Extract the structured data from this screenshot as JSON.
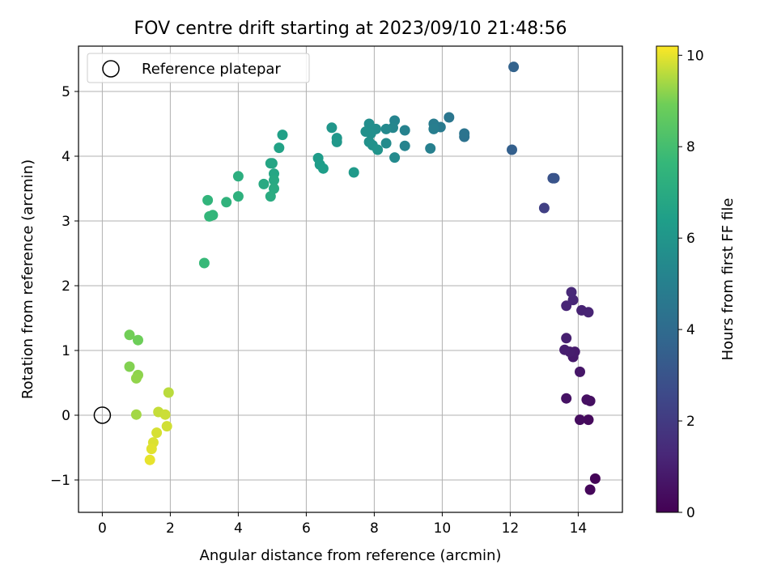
{
  "chart_data": {
    "type": "scatter",
    "title": "FOV centre drift starting at 2023/09/10 21:48:56",
    "xlabel": "Angular distance from reference (arcmin)",
    "ylabel": "Rotation from reference (arcmin)",
    "xlim": [
      -0.7,
      15.3
    ],
    "ylim": [
      -1.5,
      5.7
    ],
    "xticks": [
      0,
      2,
      4,
      6,
      8,
      10,
      12,
      14
    ],
    "yticks": [
      -1,
      0,
      1,
      2,
      3,
      4,
      5
    ],
    "grid": true,
    "legend": {
      "placement": "top-left",
      "entries": [
        "Reference platepar"
      ]
    },
    "reference_point": {
      "x": 0,
      "y": 0
    },
    "colorbar": {
      "label": "Hours from first FF file",
      "colormap": "viridis",
      "range": [
        0,
        10.2
      ],
      "ticks": [
        0,
        2,
        4,
        6,
        8,
        10
      ]
    },
    "points": [
      {
        "x": 14.5,
        "y": -0.98,
        "c": 0.1
      },
      {
        "x": 14.35,
        "y": -1.15,
        "c": 0.2
      },
      {
        "x": 14.3,
        "y": -0.07,
        "c": 0.3
      },
      {
        "x": 14.05,
        "y": -0.07,
        "c": 0.35
      },
      {
        "x": 14.35,
        "y": 0.22,
        "c": 0.45
      },
      {
        "x": 14.25,
        "y": 0.24,
        "c": 0.5
      },
      {
        "x": 13.65,
        "y": 0.26,
        "c": 0.55
      },
      {
        "x": 14.05,
        "y": 0.67,
        "c": 0.7
      },
      {
        "x": 13.85,
        "y": 0.9,
        "c": 0.8
      },
      {
        "x": 13.9,
        "y": 0.98,
        "c": 0.85
      },
      {
        "x": 13.75,
        "y": 0.98,
        "c": 0.9
      },
      {
        "x": 13.6,
        "y": 1.01,
        "c": 0.95
      },
      {
        "x": 13.65,
        "y": 1.19,
        "c": 1.0
      },
      {
        "x": 14.1,
        "y": 1.62,
        "c": 1.1
      },
      {
        "x": 14.3,
        "y": 1.59,
        "c": 1.15
      },
      {
        "x": 13.65,
        "y": 1.69,
        "c": 1.2
      },
      {
        "x": 13.85,
        "y": 1.78,
        "c": 1.25
      },
      {
        "x": 13.8,
        "y": 1.9,
        "c": 1.3
      },
      {
        "x": 13.0,
        "y": 3.2,
        "c": 2.2
      },
      {
        "x": 13.25,
        "y": 3.66,
        "c": 2.9
      },
      {
        "x": 13.3,
        "y": 3.66,
        "c": 3.0
      },
      {
        "x": 12.05,
        "y": 4.1,
        "c": 3.5
      },
      {
        "x": 12.1,
        "y": 5.38,
        "c": 3.6
      },
      {
        "x": 10.65,
        "y": 4.3,
        "c": 4.3
      },
      {
        "x": 10.65,
        "y": 4.35,
        "c": 4.4
      },
      {
        "x": 10.2,
        "y": 4.6,
        "c": 4.5
      },
      {
        "x": 9.95,
        "y": 4.45,
        "c": 4.7
      },
      {
        "x": 9.75,
        "y": 4.5,
        "c": 4.8
      },
      {
        "x": 9.75,
        "y": 4.42,
        "c": 4.9
      },
      {
        "x": 9.65,
        "y": 4.12,
        "c": 5.0
      },
      {
        "x": 8.9,
        "y": 4.4,
        "c": 5.1
      },
      {
        "x": 8.9,
        "y": 4.16,
        "c": 5.15
      },
      {
        "x": 8.6,
        "y": 4.55,
        "c": 5.2
      },
      {
        "x": 8.55,
        "y": 4.44,
        "c": 5.3
      },
      {
        "x": 8.35,
        "y": 4.42,
        "c": 5.4
      },
      {
        "x": 8.6,
        "y": 3.98,
        "c": 5.45
      },
      {
        "x": 8.35,
        "y": 4.2,
        "c": 5.5
      },
      {
        "x": 8.05,
        "y": 4.42,
        "c": 5.6
      },
      {
        "x": 7.85,
        "y": 4.5,
        "c": 5.65
      },
      {
        "x": 7.9,
        "y": 4.35,
        "c": 5.7
      },
      {
        "x": 7.75,
        "y": 4.38,
        "c": 5.75
      },
      {
        "x": 7.85,
        "y": 4.22,
        "c": 5.8
      },
      {
        "x": 7.95,
        "y": 4.17,
        "c": 5.85
      },
      {
        "x": 8.1,
        "y": 4.1,
        "c": 5.9
      },
      {
        "x": 6.75,
        "y": 4.44,
        "c": 6.0
      },
      {
        "x": 6.9,
        "y": 4.28,
        "c": 6.05
      },
      {
        "x": 6.9,
        "y": 4.22,
        "c": 6.1
      },
      {
        "x": 7.4,
        "y": 3.75,
        "c": 6.2
      },
      {
        "x": 6.35,
        "y": 3.97,
        "c": 6.3
      },
      {
        "x": 6.4,
        "y": 3.87,
        "c": 6.35
      },
      {
        "x": 6.5,
        "y": 3.81,
        "c": 6.4
      },
      {
        "x": 5.3,
        "y": 4.33,
        "c": 6.5
      },
      {
        "x": 5.2,
        "y": 4.13,
        "c": 6.6
      },
      {
        "x": 5.0,
        "y": 3.89,
        "c": 6.7
      },
      {
        "x": 4.95,
        "y": 3.89,
        "c": 6.75
      },
      {
        "x": 5.05,
        "y": 3.73,
        "c": 6.8
      },
      {
        "x": 5.05,
        "y": 3.63,
        "c": 6.9
      },
      {
        "x": 4.75,
        "y": 3.57,
        "c": 6.95
      },
      {
        "x": 5.05,
        "y": 3.5,
        "c": 7.0
      },
      {
        "x": 4.95,
        "y": 3.38,
        "c": 7.05
      },
      {
        "x": 4.0,
        "y": 3.69,
        "c": 7.2
      },
      {
        "x": 4.0,
        "y": 3.38,
        "c": 7.3
      },
      {
        "x": 3.65,
        "y": 3.29,
        "c": 7.4
      },
      {
        "x": 3.1,
        "y": 3.32,
        "c": 7.5
      },
      {
        "x": 3.25,
        "y": 3.09,
        "c": 7.55
      },
      {
        "x": 3.15,
        "y": 3.07,
        "c": 7.6
      },
      {
        "x": 3.0,
        "y": 2.35,
        "c": 7.7
      },
      {
        "x": 1.05,
        "y": 1.16,
        "c": 8.9
      },
      {
        "x": 0.8,
        "y": 1.24,
        "c": 8.95
      },
      {
        "x": 0.8,
        "y": 0.75,
        "c": 9.1
      },
      {
        "x": 1.05,
        "y": 0.62,
        "c": 9.2
      },
      {
        "x": 1.0,
        "y": 0.57,
        "c": 9.25
      },
      {
        "x": 1.0,
        "y": 0.01,
        "c": 9.4
      },
      {
        "x": 1.95,
        "y": 0.35,
        "c": 9.6
      },
      {
        "x": 1.65,
        "y": 0.05,
        "c": 9.7
      },
      {
        "x": 1.85,
        "y": 0.01,
        "c": 9.75
      },
      {
        "x": 1.9,
        "y": -0.17,
        "c": 9.8
      },
      {
        "x": 1.6,
        "y": -0.27,
        "c": 9.85
      },
      {
        "x": 1.5,
        "y": -0.42,
        "c": 9.9
      },
      {
        "x": 1.45,
        "y": -0.52,
        "c": 9.95
      },
      {
        "x": 1.4,
        "y": -0.69,
        "c": 10.0
      }
    ]
  }
}
